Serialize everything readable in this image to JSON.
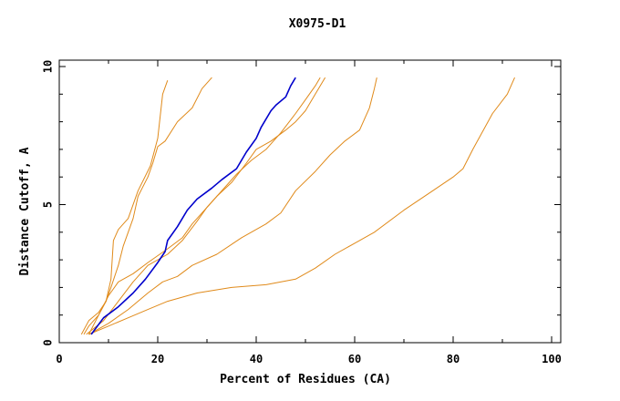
{
  "chart_data": {
    "type": "line",
    "title": "X0975-D1",
    "xlabel": "Percent of Residues (CA)",
    "ylabel": "Distance Cutoff, A",
    "xlim": [
      0,
      100
    ],
    "ylim": [
      0,
      10
    ],
    "x_ticks": [
      0,
      20,
      40,
      60,
      80,
      100
    ],
    "y_ticks": [
      0,
      5,
      10
    ],
    "x_tick_labels": [
      "0",
      "20",
      "40",
      "60",
      "80",
      "100"
    ],
    "y_tick_labels": [
      "0",
      "5",
      "10"
    ],
    "grid": false,
    "legend": "none",
    "colors": {
      "highlight": "#0000cc",
      "others": "#e08a1a",
      "axis": "#000000"
    },
    "series": [
      {
        "color": "#e08a1a",
        "highlight": false,
        "points": [
          [
            4.5,
            0.3
          ],
          [
            6,
            0.8
          ],
          [
            8,
            1.1
          ],
          [
            9.5,
            1.5
          ],
          [
            10.5,
            2.3
          ],
          [
            11,
            3.7
          ],
          [
            12,
            4.1
          ],
          [
            14,
            4.5
          ],
          [
            16,
            5.5
          ],
          [
            18.5,
            6.4
          ],
          [
            20,
            7.4
          ],
          [
            21,
            9
          ],
          [
            22,
            9.5
          ]
        ]
      },
      {
        "color": "#e08a1a",
        "highlight": false,
        "points": [
          [
            5,
            0.3
          ],
          [
            6,
            0.6
          ],
          [
            8,
            1
          ],
          [
            9.5,
            1.5
          ],
          [
            10.5,
            2
          ],
          [
            12,
            2.8
          ],
          [
            13,
            3.5
          ],
          [
            14,
            4
          ],
          [
            15,
            4.5
          ],
          [
            16,
            5.3
          ],
          [
            18,
            6
          ],
          [
            19,
            6.5
          ],
          [
            20,
            7.1
          ],
          [
            21.5,
            7.3
          ],
          [
            24,
            8
          ],
          [
            27,
            8.5
          ],
          [
            29,
            9.2
          ],
          [
            31,
            9.6
          ]
        ]
      },
      {
        "color": "#e08a1a",
        "highlight": false,
        "points": [
          [
            5.5,
            0.3
          ],
          [
            9,
            0.8
          ],
          [
            12,
            1.5
          ],
          [
            15,
            2.2
          ],
          [
            18,
            2.8
          ],
          [
            22,
            3.2
          ],
          [
            25,
            3.7
          ],
          [
            28,
            4.4
          ],
          [
            30,
            4.9
          ],
          [
            32,
            5.3
          ],
          [
            35,
            5.8
          ],
          [
            38,
            6.5
          ],
          [
            40,
            7
          ],
          [
            43,
            7.3
          ],
          [
            46,
            7.7
          ],
          [
            48,
            8
          ],
          [
            50,
            8.4
          ],
          [
            52,
            9
          ],
          [
            54,
            9.6
          ]
        ]
      },
      {
        "color": "#e08a1a",
        "highlight": false,
        "points": [
          [
            6,
            0.3
          ],
          [
            8,
            1
          ],
          [
            10,
            1.7
          ],
          [
            12,
            2.2
          ],
          [
            15,
            2.5
          ],
          [
            18,
            2.9
          ],
          [
            22,
            3.4
          ],
          [
            25,
            3.8
          ],
          [
            27,
            4.3
          ],
          [
            29,
            4.7
          ],
          [
            31,
            5.1
          ],
          [
            34,
            5.7
          ],
          [
            36,
            6.1
          ],
          [
            39,
            6.6
          ],
          [
            42,
            7
          ],
          [
            45,
            7.6
          ],
          [
            48,
            8.3
          ],
          [
            50,
            8.8
          ],
          [
            52,
            9.3
          ],
          [
            53,
            9.6
          ]
        ]
      },
      {
        "color": "#e08a1a",
        "highlight": false,
        "points": [
          [
            6,
            0.3
          ],
          [
            10,
            0.7
          ],
          [
            14,
            1.2
          ],
          [
            18,
            1.8
          ],
          [
            21,
            2.2
          ],
          [
            24,
            2.4
          ],
          [
            27,
            2.8
          ],
          [
            32,
            3.2
          ],
          [
            37,
            3.8
          ],
          [
            42,
            4.3
          ],
          [
            45,
            4.7
          ],
          [
            48,
            5.5
          ],
          [
            52,
            6.2
          ],
          [
            55,
            6.8
          ],
          [
            58,
            7.3
          ],
          [
            61,
            7.7
          ],
          [
            63,
            8.5
          ],
          [
            64,
            9.2
          ],
          [
            64.5,
            9.6
          ]
        ]
      },
      {
        "color": "#e08a1a",
        "highlight": false,
        "points": [
          [
            6,
            0.3
          ],
          [
            10,
            0.6
          ],
          [
            14,
            0.9
          ],
          [
            18,
            1.2
          ],
          [
            22,
            1.5
          ],
          [
            28,
            1.8
          ],
          [
            35,
            2
          ],
          [
            42,
            2.1
          ],
          [
            48,
            2.3
          ],
          [
            52,
            2.7
          ],
          [
            56,
            3.2
          ],
          [
            60,
            3.6
          ],
          [
            64,
            4
          ],
          [
            70,
            4.8
          ],
          [
            75,
            5.4
          ],
          [
            80,
            6
          ],
          [
            82,
            6.3
          ],
          [
            84,
            7
          ],
          [
            88,
            8.3
          ],
          [
            91,
            9
          ],
          [
            92.5,
            9.6
          ]
        ]
      },
      {
        "color": "#0000cc",
        "highlight": true,
        "points": [
          [
            6.5,
            0.3
          ],
          [
            9,
            0.9
          ],
          [
            12,
            1.3
          ],
          [
            15,
            1.8
          ],
          [
            17.5,
            2.3
          ],
          [
            20,
            2.9
          ],
          [
            21.5,
            3.3
          ],
          [
            22,
            3.7
          ],
          [
            24,
            4.2
          ],
          [
            26,
            4.8
          ],
          [
            28,
            5.2
          ],
          [
            31,
            5.6
          ],
          [
            33,
            5.9
          ],
          [
            36,
            6.3
          ],
          [
            38,
            6.9
          ],
          [
            40,
            7.4
          ],
          [
            41,
            7.8
          ],
          [
            43,
            8.4
          ],
          [
            44,
            8.6
          ],
          [
            46,
            8.9
          ],
          [
            47,
            9.3
          ],
          [
            48,
            9.6
          ]
        ]
      }
    ]
  }
}
